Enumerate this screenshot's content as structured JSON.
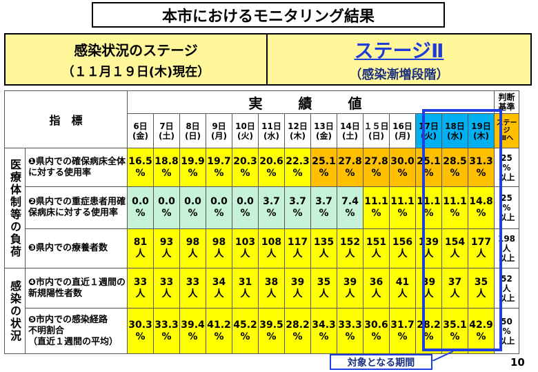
{
  "title": "本市におけるモニタリング結果",
  "stage_box": {
    "left_line1": "感染状況のステージ",
    "left_line2": "（１１月１９日(木)現在）",
    "stage_name": "ステージⅡ",
    "stage_sub": "（感染漸増段階）"
  },
  "table": {
    "header_indicator": "指　標",
    "header_actual": "実　績　値",
    "header_judge": [
      "判断",
      "基準"
    ],
    "judge_sub": [
      "ステージ",
      "Ⅲへ"
    ],
    "days": [
      {
        "d": "6日",
        "w": "(金)"
      },
      {
        "d": "7日",
        "w": "(土)"
      },
      {
        "d": "8日",
        "w": "(日)"
      },
      {
        "d": "9日",
        "w": "(月)"
      },
      {
        "d": "10日",
        "w": "(火)"
      },
      {
        "d": "11日",
        "w": "(水)"
      },
      {
        "d": "12日",
        "w": "(木)"
      },
      {
        "d": "13日",
        "w": "(金)"
      },
      {
        "d": "14日",
        "w": "(土)"
      },
      {
        "d": "１５日",
        "w": "(日)"
      },
      {
        "d": "16日",
        "w": "(月)"
      },
      {
        "d": "17日",
        "w": "(火)"
      },
      {
        "d": "18日",
        "w": "(水)"
      },
      {
        "d": "19日",
        "w": "(木)"
      }
    ],
    "categories": [
      {
        "label": "医療体制等の負荷"
      },
      {
        "label": "感染の状況"
      }
    ],
    "rows": [
      {
        "label": "❶県内での確保病床全体に対する使用率",
        "values": [
          "16.5",
          "18.8",
          "19.9",
          "19.7",
          "20.3",
          "20.6",
          "22.3",
          "25.1",
          "27.8",
          "27.8",
          "30.0",
          "25.1",
          "28.5",
          "31.3"
        ],
        "unit": "%",
        "colors": [
          "y",
          "y",
          "y",
          "y",
          "y",
          "y",
          "y",
          "o",
          "o",
          "o",
          "o",
          "o",
          "o",
          "o"
        ],
        "criterion": [
          "25",
          "%",
          "以上"
        ]
      },
      {
        "label": "❷県内での重症患者用確保病床に対する使用率",
        "values": [
          "0.0",
          "0.0",
          "0.0",
          "0.0",
          "0.0",
          "3.7",
          "3.7",
          "3.7",
          "7.4",
          "11.1",
          "11.1",
          "11.1",
          "11.1",
          "14.8"
        ],
        "unit": "%",
        "colors": [
          "g",
          "g",
          "g",
          "g",
          "g",
          "g",
          "g",
          "g",
          "g",
          "y",
          "y",
          "y",
          "y",
          "y"
        ],
        "criterion": [
          "25",
          "%",
          "以上"
        ]
      },
      {
        "label": "❸県内での療養者数",
        "values": [
          "81",
          "93",
          "98",
          "98",
          "103",
          "108",
          "117",
          "135",
          "152",
          "151",
          "156",
          "139",
          "154",
          "177"
        ],
        "unit": "人",
        "colors": [
          "y",
          "y",
          "y",
          "y",
          "y",
          "y",
          "y",
          "y",
          "y",
          "y",
          "y",
          "y",
          "y",
          "y"
        ],
        "criterion": [
          "198人",
          "以上"
        ]
      },
      {
        "label": "❹市内での直近１週間の新規陽性者数",
        "values": [
          "33",
          "33",
          "33",
          "34",
          "31",
          "38",
          "39",
          "35",
          "39",
          "36",
          "41",
          "39",
          "37",
          "35"
        ],
        "unit": "人",
        "colors": [
          "y",
          "y",
          "y",
          "y",
          "y",
          "y",
          "y",
          "y",
          "y",
          "y",
          "y",
          "y",
          "y",
          "y"
        ],
        "criterion": [
          "52",
          "人",
          "以上"
        ]
      },
      {
        "label": "❺市内での感染経路不明割合（直近１週間の平均）",
        "label_lines": [
          "❺市内での感染経路",
          "不明割合",
          "（直近１週間の平均）"
        ],
        "values": [
          "30.3",
          "33.3",
          "39.4",
          "41.2",
          "45.2",
          "39.5",
          "28.2",
          "34.3",
          "33.3",
          "30.6",
          "31.7",
          "28.2",
          "35.1",
          "42.9"
        ],
        "unit": "%",
        "colors": [
          "y",
          "y",
          "y",
          "y",
          "y",
          "y",
          "y",
          "y",
          "y",
          "y",
          "y",
          "y",
          "y",
          "y"
        ],
        "criterion": [
          "50",
          "%",
          "以上"
        ]
      }
    ]
  },
  "period_label": "対象となる期間",
  "page_number": "10",
  "colors": {
    "yellow": "#ffff00",
    "orange": "#ffc000",
    "green": "#c6f3d8",
    "highlight_header": "#00b0f0",
    "frame_blue": "#1f3fe0",
    "stage_text_blue": "#1f3bd8"
  }
}
